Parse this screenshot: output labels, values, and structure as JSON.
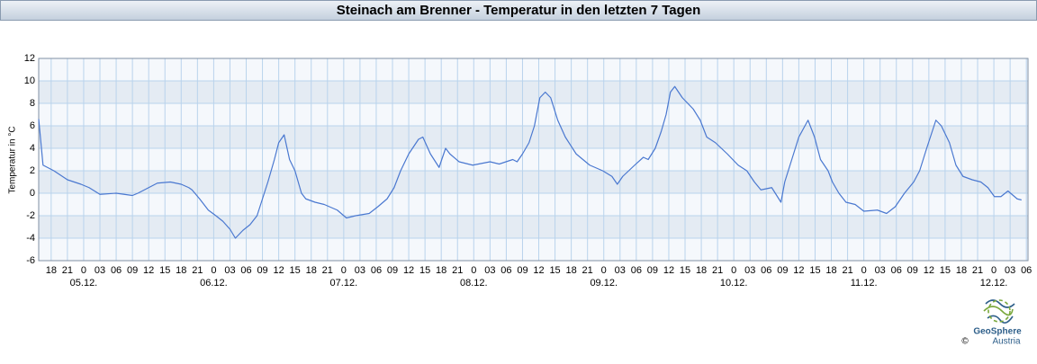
{
  "chart_data": {
    "type": "line",
    "title": "Steinach am Brenner - Temperatur in den letzten 7 Tagen",
    "y_label": "Temperatur in °C",
    "color": "#4a78d0",
    "x": [
      -8.3,
      -7.5,
      -5.5,
      -3,
      -0.5,
      1,
      3,
      6,
      9,
      10,
      12,
      13.6,
      16,
      18,
      19.4,
      20,
      21.4,
      23,
      24.4,
      25.7,
      27,
      28,
      29.4,
      30.7,
      32,
      33,
      34,
      35.2,
      36,
      37,
      38,
      39,
      40.2,
      41,
      42.7,
      44.4,
      46.8,
      48.5,
      50.2,
      52.7,
      54.3,
      56,
      57.3,
      58.5,
      60,
      61.8,
      62.6,
      64,
      65.6,
      66.8,
      67.6,
      69.3,
      71.8,
      75,
      76.7,
      79.2,
      80,
      81,
      82.2,
      83.2,
      84.2,
      85.2,
      86.2,
      87.5,
      88.9,
      90.9,
      93.4,
      95.8,
      97.5,
      98.5,
      99.5,
      101.7,
      103.3,
      104.2,
      105.5,
      106.6,
      107.5,
      108.3,
      109.1,
      110.5,
      112.5,
      113.8,
      115,
      116.6,
      118.8,
      120.8,
      122.4,
      123.8,
      125,
      127,
      128.7,
      129.4,
      130.7,
      132,
      133.7,
      134.9,
      136,
      137.4,
      138.2,
      139.4,
      140.7,
      142.4,
      144,
      146.5,
      148.2,
      149.8,
      151.5,
      153.2,
      154.3,
      155.6,
      157.3,
      158.3,
      159.8,
      161,
      162.3,
      164,
      165.6,
      166.9,
      168.1,
      169.3,
      170.6,
      172.3,
      173.1
    ],
    "values": [
      6.6,
      2.5,
      2,
      1.2,
      0.8,
      0.5,
      -0.1,
      0,
      -0.2,
      0,
      0.5,
      0.9,
      1,
      0.8,
      0.5,
      0.3,
      -0.5,
      -1.5,
      -2,
      -2.5,
      -3.2,
      -4,
      -3.3,
      -2.8,
      -2,
      -0.5,
      1,
      3,
      4.5,
      5.2,
      3,
      2,
      0,
      -0.5,
      -0.8,
      -1,
      -1.5,
      -2.2,
      -2,
      -1.8,
      -1.2,
      -0.5,
      0.5,
      2,
      3.5,
      4.8,
      5,
      3.5,
      2.3,
      4,
      3.5,
      2.8,
      2.5,
      2.8,
      2.6,
      3,
      2.8,
      3.5,
      4.5,
      6,
      8.5,
      9,
      8.5,
      6.5,
      5,
      3.5,
      2.5,
      2,
      1.5,
      0.8,
      1.5,
      2.5,
      3.2,
      3,
      4,
      5.5,
      7,
      9,
      9.5,
      8.5,
      7.5,
      6.5,
      5,
      4.5,
      3.5,
      2.5,
      2,
      1,
      0.3,
      0.5,
      -0.8,
      1,
      3,
      5,
      6.5,
      5,
      3,
      2,
      1,
      0,
      -0.8,
      -1,
      -1.6,
      -1.5,
      -1.8,
      -1.2,
      0,
      1,
      2,
      4,
      6.5,
      6,
      4.5,
      2.5,
      1.5,
      1.2,
      1,
      0.5,
      -0.3,
      -0.3,
      0.2,
      -0.5,
      -0.6
    ],
    "xlim": [
      -8.3,
      174.3
    ],
    "ylim": [
      -6,
      12
    ],
    "yticks": [
      -6,
      -4,
      -2,
      0,
      2,
      4,
      6,
      8,
      10,
      12
    ],
    "xticks": [
      {
        "value": -6,
        "label": "18"
      },
      {
        "value": -3,
        "label": "21"
      },
      0,
      {
        "value": 3,
        "label": "03"
      },
      {
        "value": 6,
        "label": "06"
      },
      {
        "value": 9,
        "label": "09"
      },
      12,
      15,
      18,
      21,
      {
        "value": 24,
        "label": "0"
      },
      {
        "value": 27,
        "label": "03"
      },
      {
        "value": 30,
        "label": "06"
      },
      {
        "value": 33,
        "label": "09"
      },
      {
        "value": 36,
        "label": "12"
      },
      {
        "value": 39,
        "label": "15"
      },
      {
        "value": 42,
        "label": "18"
      },
      {
        "value": 45,
        "label": "21"
      },
      {
        "value": 48,
        "label": "0"
      },
      {
        "value": 51,
        "label": "03"
      },
      {
        "value": 54,
        "label": "06"
      },
      {
        "value": 57,
        "label": "09"
      },
      {
        "value": 60,
        "label": "12"
      },
      {
        "value": 63,
        "label": "15"
      },
      {
        "value": 66,
        "label": "18"
      },
      {
        "value": 69,
        "label": "21"
      },
      {
        "value": 72,
        "label": "0"
      },
      {
        "value": 75,
        "label": "03"
      },
      {
        "value": 78,
        "label": "06"
      },
      {
        "value": 81,
        "label": "09"
      },
      {
        "value": 84,
        "label": "12"
      },
      {
        "value": 87,
        "label": "15"
      },
      {
        "value": 90,
        "label": "18"
      },
      {
        "value": 93,
        "label": "21"
      },
      {
        "value": 96,
        "label": "0"
      },
      {
        "value": 99,
        "label": "03"
      },
      {
        "value": 102,
        "label": "06"
      },
      {
        "value": 105,
        "label": "09"
      },
      {
        "value": 108,
        "label": "12"
      },
      {
        "value": 111,
        "label": "15"
      },
      {
        "value": 114,
        "label": "18"
      },
      {
        "value": 117,
        "label": "21"
      },
      {
        "value": 120,
        "label": "0"
      },
      {
        "value": 123,
        "label": "03"
      },
      {
        "value": 126,
        "label": "06"
      },
      {
        "value": 129,
        "label": "09"
      },
      {
        "value": 132,
        "label": "12"
      },
      {
        "value": 135,
        "label": "15"
      },
      {
        "value": 138,
        "label": "18"
      },
      {
        "value": 141,
        "label": "21"
      },
      {
        "value": 144,
        "label": "0"
      },
      {
        "value": 147,
        "label": "03"
      },
      {
        "value": 150,
        "label": "06"
      },
      {
        "value": 153,
        "label": "09"
      },
      {
        "value": 156,
        "label": "12"
      },
      {
        "value": 159,
        "label": "15"
      },
      {
        "value": 162,
        "label": "18"
      },
      {
        "value": 165,
        "label": "21"
      },
      {
        "value": 168,
        "label": "0"
      },
      {
        "value": 171,
        "label": "03"
      },
      {
        "value": 174,
        "label": "06"
      }
    ],
    "date_labels": [
      {
        "value": 0,
        "label": "05.12."
      },
      {
        "value": 24,
        "label": "06.12."
      },
      {
        "value": 48,
        "label": "07.12."
      },
      {
        "value": 72,
        "label": "08.12."
      },
      {
        "value": 96,
        "label": "09.12."
      },
      {
        "value": 120,
        "label": "10.12."
      },
      {
        "value": 144,
        "label": "11.12."
      },
      {
        "value": 168,
        "label": "12.12."
      }
    ],
    "grid": true
  },
  "logo": {
    "name": "GeoSphere",
    "sub": "Austria",
    "copyright": "©"
  }
}
